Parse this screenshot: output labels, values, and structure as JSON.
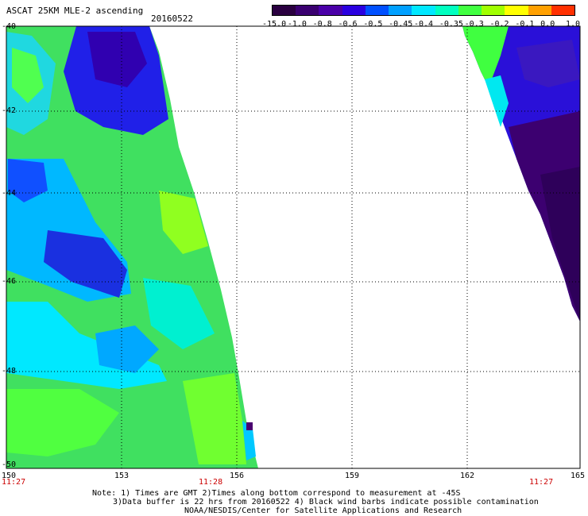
{
  "title": "ASCAT 25KM MLE-2 ascending",
  "date": "20160522",
  "colorbar": {
    "labels": [
      "-15.0",
      "-1.0",
      "-0.8",
      "-0.6",
      "-0.5",
      "-0.45",
      "-0.4",
      "-0.35",
      "-0.3",
      "-0.2",
      "-0.1",
      "0.0",
      "1.0"
    ],
    "colors": [
      "#2a0040",
      "#3a0070",
      "#4a00a8",
      "#2a00e0",
      "#0050ff",
      "#00a0ff",
      "#00e8ff",
      "#00ffc0",
      "#40ff40",
      "#a0ff00",
      "#ffff00",
      "#ffa000",
      "#ff3000"
    ]
  },
  "axes": {
    "lat_labels": [
      "-40",
      "-42",
      "-44",
      "-46",
      "-48",
      "-50"
    ],
    "lon_labels": [
      "150",
      "153",
      "156",
      "159",
      "162",
      "165"
    ],
    "lon_range": [
      150,
      165
    ],
    "lat_range": [
      -50,
      -40
    ]
  },
  "times": [
    "11:27",
    "11:28",
    "11:27"
  ],
  "notes": [
    "Note: 1) Times are GMT 2)Times along bottom correspond to measurement at -45S",
    "3)Data buffer is 22 hrs from 20160522 4) Black wind barbs indicate possible contamination",
    "NOAA/NESDIS/Center for Satellite Applications and Research"
  ]
}
